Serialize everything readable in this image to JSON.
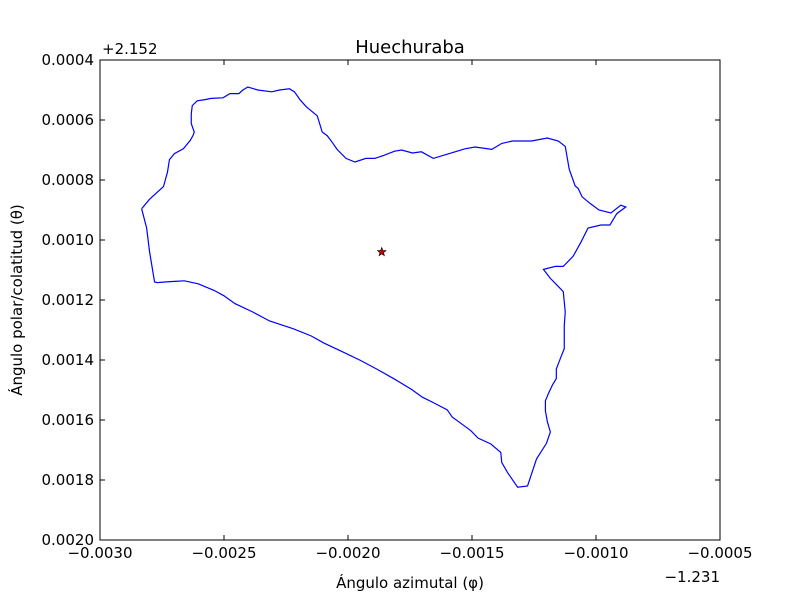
{
  "chart_data": {
    "type": "line",
    "title": "Huechuraba",
    "xlabel": "Ángulo azimutal (φ)",
    "ylabel": "Ángulo polar/colatitud (θ)",
    "x_offset_label": "−1.231",
    "y_offset_label": "+2.152",
    "xlim": [
      -0.003,
      -0.0005
    ],
    "ylim": [
      0.002,
      0.0004
    ],
    "x_ticks": [
      -0.003,
      -0.0025,
      -0.002,
      -0.0015,
      -0.001,
      -0.0005
    ],
    "x_tick_labels": [
      "−0.0030",
      "−0.0025",
      "−0.0020",
      "−0.0015",
      "−0.0010",
      "−0.0005"
    ],
    "y_ticks": [
      0.0004,
      0.0006,
      0.0008,
      0.001,
      0.0012,
      0.0014,
      0.0016,
      0.0018,
      0.002
    ],
    "y_tick_labels": [
      "0.0004",
      "0.0006",
      "0.0008",
      "0.0010",
      "0.0012",
      "0.0014",
      "0.0016",
      "0.0018",
      "0.0020"
    ],
    "grid": false,
    "series": [
      {
        "color": "#0000ff",
        "x": [
          -0.002832,
          -0.0028,
          -0.002744,
          -0.002728,
          -0.00272,
          -0.0027,
          -0.002664,
          -0.002636,
          -0.002624,
          -0.00262,
          -0.002632,
          -0.002632,
          -0.002628,
          -0.002608,
          -0.002576,
          -0.002552,
          -0.002504,
          -0.002476,
          -0.00244,
          -0.002424,
          -0.002404,
          -0.002388,
          -0.002364,
          -0.002308,
          -0.002276,
          -0.002236,
          -0.002216,
          -0.002192,
          -0.002168,
          -0.002124,
          -0.002104,
          -0.002084,
          -0.002064,
          -0.002044,
          -0.002008,
          -0.001972,
          -0.001928,
          -0.001892,
          -0.001856,
          -0.001812,
          -0.001784,
          -0.00174,
          -0.001704,
          -0.001656,
          -0.0016,
          -0.001528,
          -0.001488,
          -0.00142,
          -0.00138,
          -0.001336,
          -0.00126,
          -0.001196,
          -0.001152,
          -0.001124,
          -0.001108,
          -0.001084,
          -0.001072,
          -0.001056,
          -0.001024,
          -0.000988,
          -0.00094,
          -0.0009,
          -0.00088,
          -0.000916,
          -0.000944,
          -0.00098,
          -0.001032,
          -0.00106,
          -0.001092,
          -0.001132,
          -0.001164,
          -0.001212,
          -0.001184,
          -0.00116,
          -0.001132,
          -0.001124,
          -0.001128,
          -0.001128,
          -0.001148,
          -0.00116,
          -0.00116,
          -0.001176,
          -0.001192,
          -0.001204,
          -0.001204,
          -0.001196,
          -0.001184,
          -0.0012,
          -0.00124,
          -0.001276,
          -0.001316,
          -0.001356,
          -0.00138,
          -0.001384,
          -0.001424,
          -0.001476,
          -0.001504,
          -0.00154,
          -0.00158,
          -0.0016,
          -0.001656,
          -0.0017,
          -0.001744,
          -0.001812,
          -0.00188,
          -0.001948,
          -0.002024,
          -0.002096,
          -0.002148,
          -0.00222,
          -0.002316,
          -0.002384,
          -0.002456,
          -0.0025,
          -0.00254,
          -0.002604,
          -0.00266,
          -0.0027,
          -0.00274,
          -0.002768,
          -0.00278,
          -0.002788,
          -0.0028,
          -0.002812,
          -0.002832
        ],
        "y": [
          0.000896,
          0.000864,
          0.000822,
          0.000774,
          0.000732,
          0.000712,
          0.000696,
          0.000668,
          0.00065,
          0.00064,
          0.000612,
          0.00058,
          0.000552,
          0.000536,
          0.000532,
          0.000528,
          0.000526,
          0.000512,
          0.000512,
          0.0005,
          0.00049,
          0.000494,
          0.0005,
          0.000506,
          0.0005,
          0.000496,
          0.000506,
          0.000534,
          0.000556,
          0.000586,
          0.00064,
          0.000652,
          0.000674,
          0.000698,
          0.000728,
          0.00074,
          0.000728,
          0.000728,
          0.000718,
          0.000704,
          0.0007,
          0.00071,
          0.000706,
          0.000728,
          0.000714,
          0.000696,
          0.00069,
          0.000698,
          0.000678,
          0.00067,
          0.00067,
          0.00066,
          0.00067,
          0.000688,
          0.000764,
          0.00082,
          0.000828,
          0.000856,
          0.000878,
          0.0009,
          0.00091,
          0.000884,
          0.00089,
          0.000912,
          0.00095,
          0.00095,
          0.00096,
          0.001006,
          0.001054,
          0.001088,
          0.001088,
          0.001098,
          0.001128,
          0.001148,
          0.001172,
          0.00124,
          0.001286,
          0.001362,
          0.001404,
          0.00143,
          0.001462,
          0.001484,
          0.001512,
          0.001536,
          0.00157,
          0.001606,
          0.00164,
          0.001678,
          0.00173,
          0.00182,
          0.001824,
          0.001776,
          0.001742,
          0.001708,
          0.00168,
          0.00166,
          0.001636,
          0.001614,
          0.00159,
          0.001566,
          0.001542,
          0.001524,
          0.001498,
          0.001464,
          0.001432,
          0.001402,
          0.001372,
          0.001344,
          0.00132,
          0.001296,
          0.00127,
          0.00124,
          0.001212,
          0.001186,
          0.001168,
          0.001146,
          0.001136,
          0.001138,
          0.00114,
          0.001142,
          0.00114,
          0.0011,
          0.00104,
          0.00096,
          0.000896
        ]
      }
    ],
    "markers": [
      {
        "type": "star",
        "x": -0.001864,
        "y": 0.00104,
        "color": "#cc0000"
      }
    ]
  }
}
